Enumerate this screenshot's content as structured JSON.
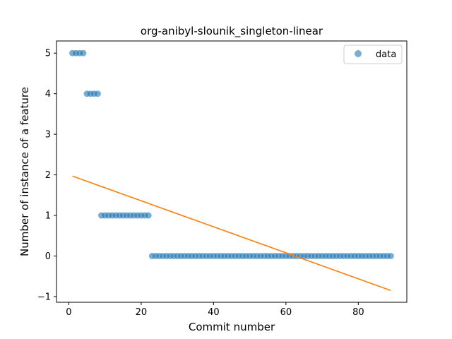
{
  "chart_data": {
    "type": "scatter",
    "title": "org-anibyl-slounik_singleton-linear",
    "xlabel": "Commit number",
    "ylabel": "Number of instance of a feature",
    "xlim": [
      -3.4,
      93.4
    ],
    "ylim": [
      -1.14,
      5.3
    ],
    "xticks": [
      0,
      20,
      40,
      60,
      80
    ],
    "yticks": [
      -1,
      0,
      1,
      2,
      3,
      4,
      5
    ],
    "grid": false,
    "legend": {
      "placement": "top-right"
    },
    "series": [
      {
        "name": "data",
        "kind": "scatter",
        "color": "#1f77b4",
        "x": [
          1,
          2,
          3,
          4,
          5,
          6,
          7,
          8,
          9,
          10,
          11,
          12,
          13,
          14,
          15,
          16,
          17,
          18,
          19,
          20,
          21,
          22,
          23,
          24,
          25,
          26,
          27,
          28,
          29,
          30,
          31,
          32,
          33,
          34,
          35,
          36,
          37,
          38,
          39,
          40,
          41,
          42,
          43,
          44,
          45,
          46,
          47,
          48,
          49,
          50,
          51,
          52,
          53,
          54,
          55,
          56,
          57,
          58,
          59,
          60,
          61,
          62,
          63,
          64,
          65,
          66,
          67,
          68,
          69,
          70,
          71,
          72,
          73,
          74,
          75,
          76,
          77,
          78,
          79,
          80,
          81,
          82,
          83,
          84,
          85,
          86,
          87,
          88,
          89
        ],
        "y": [
          5,
          5,
          5,
          5,
          4,
          4,
          4,
          4,
          1,
          1,
          1,
          1,
          1,
          1,
          1,
          1,
          1,
          1,
          1,
          1,
          1,
          1,
          0,
          0,
          0,
          0,
          0,
          0,
          0,
          0,
          0,
          0,
          0,
          0,
          0,
          0,
          0,
          0,
          0,
          0,
          0,
          0,
          0,
          0,
          0,
          0,
          0,
          0,
          0,
          0,
          0,
          0,
          0,
          0,
          0,
          0,
          0,
          0,
          0,
          0,
          0,
          0,
          0,
          0,
          0,
          0,
          0,
          0,
          0,
          0,
          0,
          0,
          0,
          0,
          0,
          0,
          0,
          0,
          0,
          0,
          0,
          0,
          0,
          0,
          0,
          0,
          0,
          0,
          0
        ]
      },
      {
        "kind": "line",
        "color": "#ff7f0e",
        "x": [
          1,
          89
        ],
        "y": [
          1.97,
          -0.85
        ]
      }
    ]
  }
}
